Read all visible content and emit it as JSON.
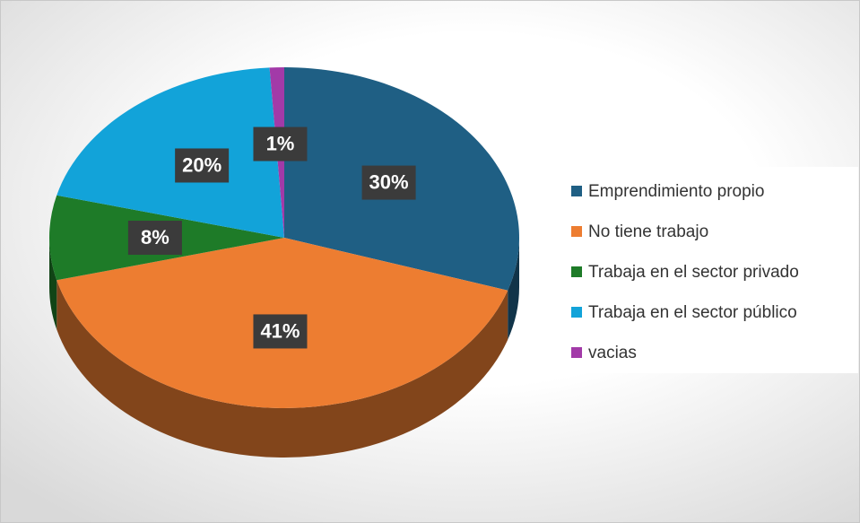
{
  "chart_data": {
    "type": "pie",
    "categories": [
      "Emprendimiento propio",
      "No tiene trabajo",
      "Trabaja en el sector privado",
      "Trabaja en el sector público",
      "vacias"
    ],
    "values": [
      30,
      41,
      8,
      20,
      1
    ],
    "value_labels": [
      "30%",
      "41%",
      "8%",
      "20%",
      "1%"
    ],
    "colors": [
      "#1f5f84",
      "#ed7d31",
      "#1e7b28",
      "#12a3d9",
      "#a23aa8"
    ],
    "legend": "right"
  }
}
